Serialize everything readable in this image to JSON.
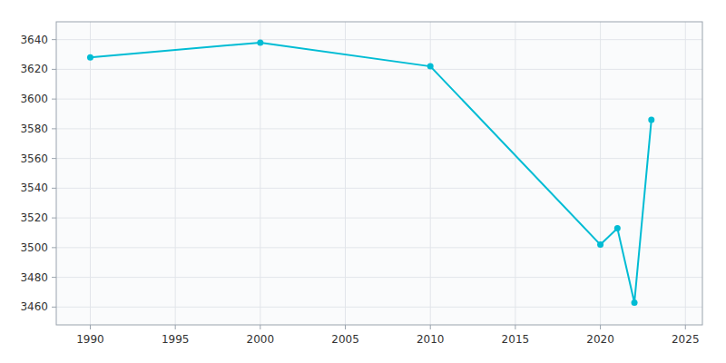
{
  "chart_data": {
    "type": "line",
    "x": [
      1990,
      2000,
      2010,
      2020,
      2021,
      2022,
      2023
    ],
    "values": [
      3628,
      3638,
      3622,
      3502,
      3513,
      3463,
      3586
    ],
    "color": "#00BCD4",
    "marker": "circle",
    "xlim": [
      1988,
      2026
    ],
    "ylim": [
      3448,
      3652
    ],
    "xticks": [
      1990,
      1995,
      2000,
      2005,
      2010,
      2015,
      2020,
      2025
    ],
    "yticks": [
      3460,
      3480,
      3500,
      3520,
      3540,
      3560,
      3580,
      3600,
      3620,
      3640
    ],
    "grid": true
  }
}
